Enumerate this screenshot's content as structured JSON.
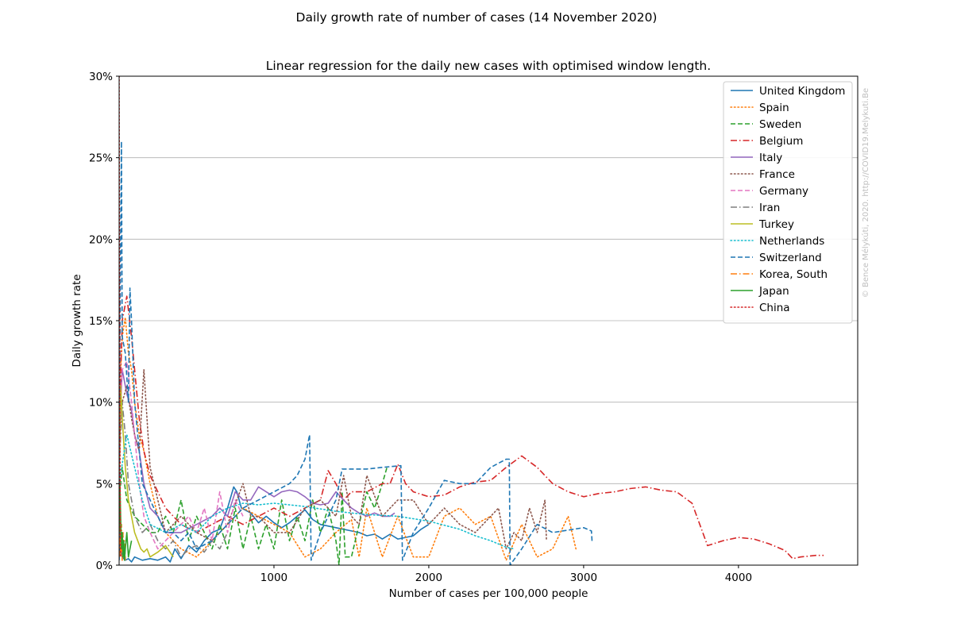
{
  "chart_data": {
    "type": "line",
    "suptitle": "Daily growth rate of number of cases (14 November 2020)",
    "title": "Linear regression for the daily new cases with optimised window length.",
    "xlabel": "Number of cases per 100,000 people",
    "ylabel": "Daily growth rate",
    "watermark": "© Bence Mélykúti, 2020. http://COVID19.Melykuti.Be",
    "xlim": [
      0,
      4770
    ],
    "ylim": [
      0,
      30
    ],
    "xticks": [
      1000,
      2000,
      3000,
      4000
    ],
    "yticks": [
      0,
      5,
      10,
      15,
      20,
      25,
      30
    ],
    "ytick_labels": [
      "0%",
      "5%",
      "10%",
      "15%",
      "20%",
      "25%",
      "30%"
    ],
    "grid": "horizontal",
    "legend_position": "top-right",
    "series": [
      {
        "name": "United Kingdom",
        "color": "#1f77b4",
        "dash": "solid",
        "x": [
          0,
          5,
          10,
          20,
          40,
          60,
          80,
          100,
          150,
          200,
          250,
          300,
          330,
          360,
          400,
          450,
          500,
          550,
          600,
          650,
          700,
          740,
          760,
          790,
          850,
          900,
          950,
          1000,
          1050,
          1100,
          1150,
          1200,
          1250,
          1300,
          1400,
          1450,
          1500,
          1550,
          1600,
          1650,
          1700,
          1750,
          1800,
          1850,
          1900,
          1950,
          2000
        ],
        "y": [
          0.3,
          2.0,
          1.0,
          0.5,
          0.3,
          0.4,
          0.2,
          0.5,
          0.3,
          0.4,
          0.3,
          0.5,
          0.2,
          1.0,
          0.4,
          1.2,
          0.8,
          1.5,
          2.0,
          2.2,
          3.5,
          4.8,
          4.5,
          3.5,
          3.2,
          2.6,
          3.0,
          2.6,
          2.3,
          2.6,
          3.0,
          3.4,
          2.8,
          2.5,
          2.3,
          2.2,
          2.1,
          2.0,
          1.8,
          1.9,
          1.6,
          1.9,
          1.6,
          1.7,
          1.8,
          2.2,
          2.5
        ]
      },
      {
        "name": "Spain",
        "color": "#ff7f0e",
        "dash": "dot",
        "x": [
          0,
          10,
          20,
          40,
          60,
          80,
          100,
          130,
          160,
          200,
          250,
          300,
          400,
          500,
          600,
          700,
          800,
          900,
          1000,
          1100,
          1200,
          1300,
          1400,
          1500,
          1550,
          1600,
          1700,
          1800,
          1900,
          2000,
          2100,
          2200,
          2300,
          2400,
          2500,
          2600,
          2700,
          2800,
          2900,
          2950
        ],
        "y": [
          5.0,
          12.0,
          14.0,
          15.2,
          13.0,
          12.0,
          10.0,
          8.0,
          7.0,
          5.0,
          3.0,
          2.0,
          1.0,
          0.5,
          1.5,
          2.5,
          3.5,
          3.0,
          2.5,
          2.0,
          0.5,
          1.0,
          2.0,
          2.8,
          0.5,
          3.5,
          0.5,
          3.0,
          0.5,
          0.5,
          3.0,
          3.5,
          2.5,
          3.0,
          0.3,
          2.5,
          0.5,
          1.0,
          3.0,
          1.0
        ]
      },
      {
        "name": "Sweden",
        "color": "#2ca02c",
        "dash": "dash",
        "x": [
          0,
          20,
          50,
          100,
          150,
          200,
          250,
          300,
          350,
          400,
          450,
          500,
          550,
          600,
          650,
          700,
          750,
          800,
          850,
          900,
          950,
          1000,
          1050,
          1100,
          1150,
          1200,
          1250,
          1300,
          1350,
          1400,
          1420,
          1440,
          1460,
          1500,
          1550,
          1600,
          1650,
          1700,
          1730
        ],
        "y": [
          4.0,
          6.0,
          4.0,
          3.0,
          2.5,
          2.0,
          2.0,
          3.0,
          2.0,
          4.0,
          1.5,
          3.0,
          2.0,
          1.0,
          2.5,
          1.0,
          3.5,
          1.0,
          3.0,
          1.0,
          2.5,
          1.0,
          4.0,
          1.5,
          3.0,
          1.5,
          4.0,
          2.0,
          3.5,
          1.5,
          0.0,
          4.5,
          0.5,
          0.5,
          2.5,
          4.5,
          3.5,
          5.0,
          6.0
        ]
      },
      {
        "name": "Belgium",
        "color": "#d62728",
        "dash": "dashdot",
        "x": [
          0,
          20,
          50,
          80,
          100,
          130,
          160,
          200,
          250,
          300,
          400,
          500,
          600,
          700,
          800,
          900,
          1000,
          1100,
          1200,
          1300,
          1350,
          1400,
          1450,
          1500,
          1600,
          1700,
          1750,
          1800,
          1850,
          1900,
          2000,
          2100,
          2200,
          2300,
          2400,
          2500,
          2600,
          2700,
          2800,
          2900,
          3000,
          3100,
          3200,
          3300,
          3400,
          3500,
          3600,
          3700,
          3800,
          3900,
          4000,
          4100,
          4200,
          4300,
          4350,
          4400,
          4500,
          4550
        ],
        "y": [
          8.0,
          15.0,
          16.5,
          14.0,
          12.0,
          9.0,
          7.0,
          5.5,
          4.5,
          3.5,
          2.5,
          2.0,
          2.5,
          3.0,
          2.5,
          3.0,
          3.5,
          3.0,
          3.5,
          4.0,
          5.8,
          5.0,
          4.0,
          4.5,
          4.5,
          5.0,
          5.0,
          6.2,
          5.0,
          4.5,
          4.2,
          4.3,
          4.8,
          5.1,
          5.2,
          6.0,
          6.7,
          6.0,
          5.0,
          4.5,
          4.2,
          4.4,
          4.5,
          4.7,
          4.8,
          4.6,
          4.5,
          3.8,
          1.2,
          1.5,
          1.7,
          1.6,
          1.3,
          0.9,
          0.4,
          0.5,
          0.6,
          0.6
        ]
      },
      {
        "name": "Italy",
        "color": "#9467bd",
        "dash": "solid",
        "x": [
          0,
          20,
          50,
          80,
          100,
          130,
          160,
          200,
          250,
          300,
          400,
          500,
          600,
          650,
          700,
          750,
          800,
          850,
          900,
          1000,
          1050,
          1100,
          1150,
          1200,
          1250,
          1300,
          1350,
          1400,
          1450,
          1500,
          1550,
          1600,
          1650,
          1700,
          1750,
          1780
        ],
        "y": [
          8.0,
          12.0,
          10.5,
          9.5,
          8.0,
          7.0,
          5.0,
          3.5,
          3.0,
          2.0,
          2.0,
          2.5,
          3.0,
          3.5,
          3.0,
          4.5,
          4.0,
          4.0,
          4.8,
          4.2,
          4.5,
          4.6,
          4.5,
          4.2,
          3.8,
          3.7,
          3.8,
          4.5,
          4.0,
          3.5,
          3.2,
          3.0,
          3.2,
          3.0,
          3.0,
          3.2
        ]
      },
      {
        "name": "France",
        "color": "#8c564b",
        "dash": "dot",
        "x": [
          0,
          20,
          50,
          80,
          100,
          130,
          160,
          200,
          250,
          300,
          400,
          500,
          600,
          700,
          800,
          850,
          900,
          1000,
          1100,
          1200,
          1300,
          1400,
          1450,
          1500,
          1550,
          1600,
          1700,
          1800,
          1900,
          2000,
          2100,
          2200,
          2300,
          2400,
          2450,
          2500,
          2550,
          2600,
          2650,
          2700,
          2750,
          2760
        ],
        "y": [
          7.0,
          10.0,
          11.0,
          9.0,
          8.0,
          7.0,
          12.0,
          6.0,
          4.0,
          2.0,
          3.0,
          2.0,
          1.5,
          2.5,
          5.0,
          3.0,
          3.0,
          2.0,
          2.0,
          3.5,
          4.0,
          3.0,
          5.5,
          3.0,
          2.5,
          5.5,
          3.0,
          4.0,
          4.0,
          2.5,
          3.5,
          2.5,
          2.0,
          3.0,
          3.5,
          1.0,
          2.0,
          1.5,
          3.5,
          2.0,
          4.0,
          1.5
        ]
      },
      {
        "name": "Germany",
        "color": "#e377c2",
        "dash": "dash",
        "x": [
          0,
          20,
          50,
          80,
          100,
          130,
          160,
          200,
          250,
          300,
          350,
          400,
          450,
          500,
          550,
          600,
          650,
          700,
          750,
          800
        ],
        "y": [
          7.0,
          12.0,
          12.5,
          10.0,
          8.0,
          5.0,
          3.0,
          2.0,
          1.0,
          1.5,
          2.0,
          2.5,
          3.0,
          2.0,
          3.5,
          1.5,
          4.5,
          2.0,
          4.0,
          3.0
        ]
      },
      {
        "name": "Iran",
        "color": "#7f7f7f",
        "dash": "dashdot",
        "x": [
          0,
          20,
          40,
          60,
          80,
          100,
          150,
          200,
          250,
          300,
          350,
          400,
          450,
          500,
          550,
          600,
          650,
          700
        ],
        "y": [
          6.0,
          10.0,
          8.0,
          5.0,
          4.0,
          3.0,
          2.0,
          2.5,
          1.5,
          1.0,
          1.5,
          0.5,
          1.0,
          1.2,
          0.8,
          1.5,
          1.0,
          2.0
        ]
      },
      {
        "name": "Turkey",
        "color": "#bcbd22",
        "dash": "solid",
        "x": [
          0,
          10,
          20,
          40,
          60,
          80,
          100,
          120,
          140,
          160,
          180,
          200,
          250,
          300,
          350
        ],
        "y": [
          5.0,
          11.0,
          9.0,
          6.0,
          4.0,
          3.0,
          2.0,
          1.5,
          1.0,
          0.8,
          1.0,
          0.5,
          0.8,
          1.2,
          0.5
        ]
      },
      {
        "name": "Netherlands",
        "color": "#17becf",
        "dash": "dot",
        "x": [
          0,
          50,
          100,
          150,
          200,
          300,
          400,
          500,
          600,
          700,
          800,
          900,
          1000,
          1200,
          1400,
          1600,
          1800,
          2000,
          2200,
          2300,
          2400,
          2500,
          2550
        ],
        "y": [
          5.0,
          8.0,
          6.0,
          4.0,
          2.5,
          2.0,
          2.5,
          2.0,
          3.0,
          3.5,
          3.8,
          3.7,
          3.8,
          3.6,
          3.3,
          3.1,
          3.0,
          2.7,
          2.2,
          1.8,
          1.5,
          1.1,
          1.0
        ]
      },
      {
        "name": "Switzerland",
        "color": "#1f77b4",
        "dash": "dash",
        "x": [
          0,
          10,
          15,
          20,
          40,
          60,
          70,
          80,
          100,
          150,
          200,
          250,
          300,
          350,
          400,
          450,
          500,
          600,
          700,
          800,
          900,
          1000,
          1100,
          1150,
          1200,
          1230,
          1240,
          1300,
          1400,
          1440,
          1460,
          1600,
          1700,
          1820,
          1830,
          1900,
          2000,
          2100,
          2200,
          2300,
          2400,
          2500,
          2520,
          2525,
          2600,
          2700,
          2800,
          3000,
          3050,
          3055
        ],
        "y": [
          5.0,
          20.0,
          26.0,
          14.0,
          13.0,
          10.0,
          17.0,
          15.0,
          10.0,
          5.0,
          4.0,
          3.0,
          2.0,
          2.0,
          1.5,
          2.0,
          1.0,
          1.5,
          2.5,
          3.5,
          4.0,
          4.5,
          5.0,
          5.5,
          6.5,
          8.0,
          0.3,
          2.0,
          4.0,
          5.9,
          5.9,
          5.9,
          6.0,
          6.1,
          0.3,
          2.0,
          3.5,
          5.2,
          5.0,
          5.0,
          6.0,
          6.5,
          6.5,
          0.0,
          1.0,
          2.5,
          2.0,
          2.3,
          2.1,
          1.4
        ]
      },
      {
        "name": "Korea, South",
        "color": "#ff7f0e",
        "dash": "dashdot",
        "x": [
          0,
          5,
          10,
          15,
          20,
          25,
          30,
          35,
          40
        ],
        "y": [
          0.5,
          3.0,
          0.5,
          2.5,
          0.3,
          2.0,
          0.5,
          1.5,
          0.3
        ]
      },
      {
        "name": "Japan",
        "color": "#2ca02c",
        "dash": "solid",
        "x": [
          0,
          5,
          10,
          15,
          20,
          25,
          30,
          35,
          40,
          50,
          60,
          70,
          80
        ],
        "y": [
          2.0,
          5.0,
          3.0,
          1.0,
          2.0,
          0.5,
          1.5,
          0.3,
          1.0,
          2.0,
          0.5,
          1.0,
          1.5
        ]
      },
      {
        "name": "China",
        "color": "#d62728",
        "dash": "dot",
        "x": [
          0,
          2,
          4,
          6,
          8,
          10
        ],
        "y": [
          30.0,
          20.0,
          12.0,
          6.0,
          2.0,
          0.5
        ]
      }
    ]
  }
}
